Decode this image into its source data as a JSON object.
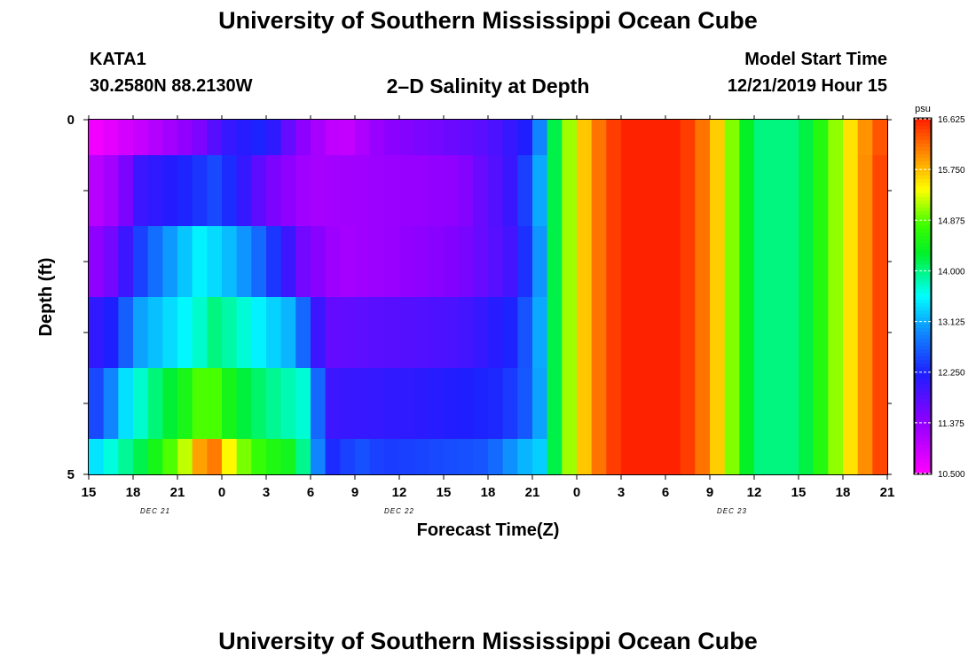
{
  "header": {
    "title": "University of Southern Mississippi Ocean Cube",
    "station_id": "KATA1",
    "coords": "30.2580N 88.2130W",
    "chart_title": "2–D Salinity at Depth",
    "start_label": "Model Start Time",
    "start_value": "12/21/2019 Hour 15"
  },
  "footer": {
    "title": "University of Southern Mississippi Ocean Cube"
  },
  "chart_data": {
    "type": "heatmap",
    "title": "2–D Salinity at Depth",
    "xlabel": "Forecast Time(Z)",
    "ylabel": "Depth (ft)",
    "x_tick_labels": [
      "15",
      "18",
      "21",
      "0",
      "3",
      "6",
      "9",
      "12",
      "15",
      "18",
      "21",
      "0",
      "3",
      "6",
      "9",
      "12",
      "15",
      "18",
      "21"
    ],
    "x_date_labels": [
      {
        "label": "DEC 21",
        "tick_index": 1.5
      },
      {
        "label": "DEC 22",
        "tick_index": 7
      },
      {
        "label": "DEC 23",
        "tick_index": 14.5
      }
    ],
    "x_range_hours": [
      0,
      54
    ],
    "y_tick_labels": [
      "0",
      "5"
    ],
    "ylim": [
      0,
      5
    ],
    "colorbar": {
      "unit": "psu",
      "min": 10.5,
      "max": 16.625,
      "tick_labels": [
        "16.625",
        "15.750",
        "14.875",
        "14.000",
        "13.125",
        "12.250",
        "11.375",
        "10.500"
      ]
    },
    "grid": false,
    "layers": [
      {
        "depth_top": 0,
        "depth_bottom": 0.5,
        "keys": [
          [
            0,
            10.55
          ],
          [
            3,
            10.9
          ],
          [
            6,
            11.3
          ],
          [
            8,
            11.6
          ],
          [
            9,
            12.0
          ],
          [
            12,
            12.3
          ],
          [
            14,
            11.5
          ],
          [
            17,
            10.9
          ],
          [
            20,
            11.4
          ],
          [
            27,
            11.8
          ],
          [
            29.5,
            12.2
          ],
          [
            30.5,
            12.9
          ],
          [
            31.3,
            14.0
          ],
          [
            32.5,
            15.1
          ],
          [
            34,
            16.0
          ],
          [
            36,
            16.6
          ],
          [
            40,
            16.6
          ],
          [
            42,
            16.0
          ],
          [
            43.5,
            15.0
          ],
          [
            45,
            14.0
          ],
          [
            48,
            14.0
          ],
          [
            50,
            14.8
          ],
          [
            52,
            15.8
          ],
          [
            54,
            16.5
          ]
        ]
      },
      {
        "depth_top": 0.5,
        "depth_bottom": 1.5,
        "keys": [
          [
            0,
            11.0
          ],
          [
            2,
            11.3
          ],
          [
            3.5,
            12.0
          ],
          [
            7,
            12.3
          ],
          [
            8.5,
            12.5
          ],
          [
            10,
            12.2
          ],
          [
            12,
            11.6
          ],
          [
            15,
            11.2
          ],
          [
            25,
            11.4
          ],
          [
            29,
            12.1
          ],
          [
            30.5,
            13.1
          ],
          [
            31.3,
            14.0
          ],
          [
            32.5,
            15.1
          ],
          [
            34,
            16.0
          ],
          [
            36,
            16.6
          ],
          [
            40,
            16.6
          ],
          [
            42,
            16.0
          ],
          [
            43.5,
            15.0
          ],
          [
            45,
            14.0
          ],
          [
            48,
            14.0
          ],
          [
            50,
            14.8
          ],
          [
            52,
            15.8
          ],
          [
            54,
            16.6
          ]
        ]
      },
      {
        "depth_top": 1.5,
        "depth_bottom": 2.5,
        "keys": [
          [
            0,
            11.3
          ],
          [
            2,
            11.7
          ],
          [
            3,
            12.3
          ],
          [
            5,
            12.9
          ],
          [
            7.5,
            13.5
          ],
          [
            9,
            13.3
          ],
          [
            11,
            12.9
          ],
          [
            13,
            12.2
          ],
          [
            14.5,
            11.6
          ],
          [
            17,
            11.2
          ],
          [
            25,
            11.5
          ],
          [
            29,
            12.0
          ],
          [
            30.5,
            13.0
          ],
          [
            31.3,
            14.0
          ],
          [
            32.5,
            15.1
          ],
          [
            34,
            16.0
          ],
          [
            36,
            16.6
          ],
          [
            40,
            16.6
          ],
          [
            42,
            16.0
          ],
          [
            43.5,
            15.0
          ],
          [
            45,
            14.0
          ],
          [
            48,
            14.0
          ],
          [
            50,
            14.8
          ],
          [
            52,
            15.8
          ],
          [
            54,
            16.6
          ]
        ]
      },
      {
        "depth_top": 2.5,
        "depth_bottom": 3.5,
        "keys": [
          [
            0,
            12.0
          ],
          [
            2,
            12.3
          ],
          [
            3,
            13.0
          ],
          [
            5,
            13.3
          ],
          [
            7,
            13.6
          ],
          [
            8.5,
            14.0
          ],
          [
            10,
            13.8
          ],
          [
            12,
            13.4
          ],
          [
            14,
            13.1
          ],
          [
            15,
            12.3
          ],
          [
            16,
            11.7
          ],
          [
            25,
            11.9
          ],
          [
            29,
            12.3
          ],
          [
            30.5,
            13.1
          ],
          [
            31.3,
            14.0
          ],
          [
            32.5,
            15.1
          ],
          [
            34,
            16.0
          ],
          [
            36,
            16.6
          ],
          [
            40,
            16.6
          ],
          [
            42,
            16.0
          ],
          [
            43.5,
            15.0
          ],
          [
            45,
            14.0
          ],
          [
            48,
            14.0
          ],
          [
            50,
            14.8
          ],
          [
            52,
            15.8
          ],
          [
            54,
            16.6
          ]
        ]
      },
      {
        "depth_top": 3.5,
        "depth_bottom": 4.5,
        "keys": [
          [
            0,
            12.3
          ],
          [
            1.5,
            12.9
          ],
          [
            2.5,
            13.4
          ],
          [
            4,
            13.9
          ],
          [
            6.5,
            14.5
          ],
          [
            8,
            15.0
          ],
          [
            10,
            14.3
          ],
          [
            12,
            14.0
          ],
          [
            14.5,
            13.7
          ],
          [
            15.5,
            12.7
          ],
          [
            16,
            12.0
          ],
          [
            22,
            12.1
          ],
          [
            28,
            12.3
          ],
          [
            30,
            12.7
          ],
          [
            30.8,
            13.3
          ],
          [
            31.3,
            14.0
          ],
          [
            32.5,
            15.1
          ],
          [
            34,
            16.0
          ],
          [
            36,
            16.6
          ],
          [
            40,
            16.6
          ],
          [
            42,
            16.0
          ],
          [
            43.5,
            15.0
          ],
          [
            45,
            14.0
          ],
          [
            48,
            14.0
          ],
          [
            50,
            14.8
          ],
          [
            52,
            15.8
          ],
          [
            54,
            16.6
          ]
        ]
      },
      {
        "depth_top": 4.5,
        "depth_bottom": 5,
        "keys": [
          [
            0,
            13.3
          ],
          [
            2,
            13.8
          ],
          [
            4,
            14.3
          ],
          [
            6.5,
            15.2
          ],
          [
            7.5,
            15.9
          ],
          [
            8.5,
            16.1
          ],
          [
            10,
            15.1
          ],
          [
            12,
            14.6
          ],
          [
            14,
            14.4
          ],
          [
            15,
            13.5
          ],
          [
            16,
            12.3
          ],
          [
            17,
            12.3
          ],
          [
            18,
            12.6
          ],
          [
            20,
            12.4
          ],
          [
            27,
            12.6
          ],
          [
            29,
            13.1
          ],
          [
            30.5,
            13.3
          ],
          [
            31.3,
            14.0
          ],
          [
            32.5,
            15.1
          ],
          [
            34,
            16.0
          ],
          [
            36,
            16.6
          ],
          [
            40,
            16.6
          ],
          [
            42,
            16.0
          ],
          [
            43.5,
            15.0
          ],
          [
            45,
            14.0
          ],
          [
            48,
            14.0
          ],
          [
            50,
            14.8
          ],
          [
            52,
            15.8
          ],
          [
            54,
            16.6
          ]
        ]
      }
    ]
  }
}
